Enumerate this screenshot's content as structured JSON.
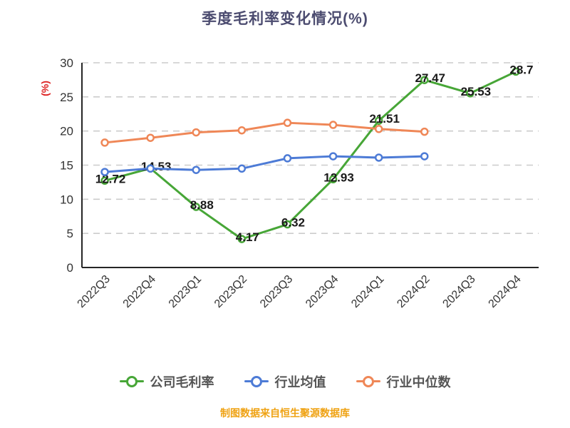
{
  "chart_data": {
    "type": "line",
    "title": "季度毛利率变化情况(%)",
    "ylabel": "(%)",
    "xlabel": "",
    "ylim": [
      0,
      30
    ],
    "yticks": [
      0,
      5,
      10,
      15,
      20,
      25,
      30
    ],
    "grid": "dashed-horizontal",
    "legend_position": "bottom",
    "categories": [
      "2022Q3",
      "2022Q4",
      "2023Q1",
      "2023Q2",
      "2023Q3",
      "2023Q4",
      "2024Q1",
      "2024Q2",
      "2024Q3",
      "2024Q4"
    ],
    "series": [
      {
        "name": "公司毛利率",
        "color": "#47a637",
        "marker": "circle-ring",
        "data_labels": true,
        "values": [
          12.72,
          14.53,
          8.88,
          4.17,
          6.32,
          12.93,
          21.51,
          27.47,
          25.53,
          28.7
        ]
      },
      {
        "name": "行业均值",
        "color": "#4d7bd6",
        "marker": "circle-ring",
        "data_labels": false,
        "values": [
          14.0,
          14.5,
          14.3,
          14.5,
          16.0,
          16.3,
          16.1,
          16.3
        ]
      },
      {
        "name": "行业中位数",
        "color": "#ef8757",
        "marker": "circle-ring",
        "data_labels": false,
        "values": [
          18.3,
          19.0,
          19.8,
          20.1,
          21.2,
          20.9,
          20.3,
          19.9
        ]
      }
    ]
  },
  "colors": {
    "title": "#4c4c70",
    "axis": "#262626",
    "grid": "#cccccc",
    "tick_label": "#333333",
    "data_label": "#1a1a1a",
    "ylabel": "#dd2222",
    "legend_text": "#555555",
    "footer": "#efa213",
    "background": "#ffffff"
  },
  "footer": {
    "caption": "制图数据来自恒生聚源数据库"
  }
}
